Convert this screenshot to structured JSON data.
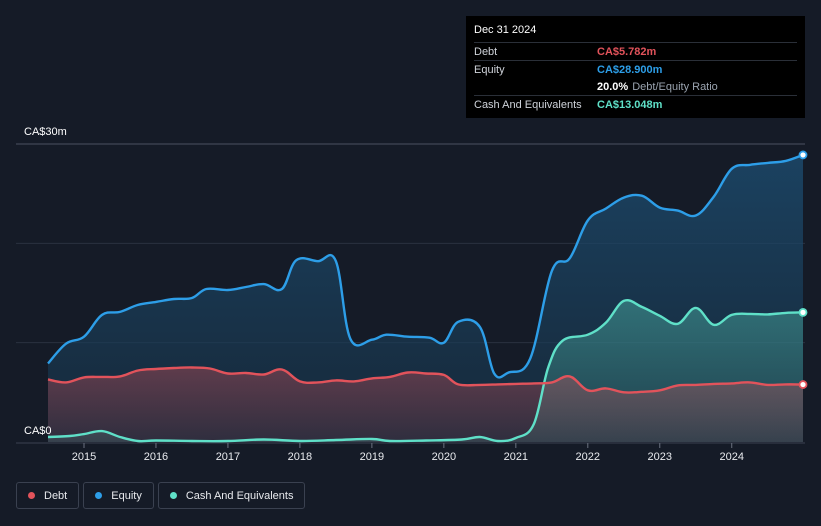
{
  "tooltip": {
    "date": "Dec 31 2024",
    "debt_label": "Debt",
    "debt_value": "CA$5.782m",
    "equity_label": "Equity",
    "equity_value": "CA$28.900m",
    "ratio_value": "20.0%",
    "ratio_label": "Debt/Equity Ratio",
    "cash_label": "Cash And Equivalents",
    "cash_value": "CA$13.048m"
  },
  "y_axis": {
    "top_label": "CA$30m",
    "bottom_label": "CA$0"
  },
  "legend": [
    {
      "label": "Debt",
      "color": "#e2535b"
    },
    {
      "label": "Equity",
      "color": "#2d9ee8"
    },
    {
      "label": "Cash And Equivalents",
      "color": "#5fe0c8"
    }
  ],
  "chart_data": {
    "type": "area",
    "title": "",
    "xlabel": "",
    "ylabel": "",
    "ylim": [
      0,
      30
    ],
    "x_ticks": [
      "2015",
      "2016",
      "2017",
      "2018",
      "2019",
      "2020",
      "2021",
      "2022",
      "2023",
      "2024"
    ],
    "series": [
      {
        "name": "Equity",
        "color": "#2d9ee8",
        "points": [
          [
            2014.5,
            7.9
          ],
          [
            2014.75,
            9.9
          ],
          [
            2015.0,
            10.6
          ],
          [
            2015.25,
            12.8
          ],
          [
            2015.5,
            13.1
          ],
          [
            2015.75,
            13.8
          ],
          [
            2016.0,
            14.1
          ],
          [
            2016.25,
            14.4
          ],
          [
            2016.5,
            14.5
          ],
          [
            2016.7,
            15.4
          ],
          [
            2017.0,
            15.3
          ],
          [
            2017.25,
            15.6
          ],
          [
            2017.5,
            15.9
          ],
          [
            2017.75,
            15.4
          ],
          [
            2017.95,
            18.3
          ],
          [
            2018.25,
            18.2
          ],
          [
            2018.5,
            18.2
          ],
          [
            2018.7,
            10.4
          ],
          [
            2019.0,
            10.3
          ],
          [
            2019.2,
            10.8
          ],
          [
            2019.5,
            10.6
          ],
          [
            2019.8,
            10.5
          ],
          [
            2020.0,
            10.0
          ],
          [
            2020.2,
            12.1
          ],
          [
            2020.5,
            11.6
          ],
          [
            2020.7,
            6.9
          ],
          [
            2020.9,
            7.0
          ],
          [
            2021.2,
            8.4
          ],
          [
            2021.5,
            17.2
          ],
          [
            2021.75,
            18.5
          ],
          [
            2022.0,
            22.3
          ],
          [
            2022.25,
            23.5
          ],
          [
            2022.5,
            24.6
          ],
          [
            2022.75,
            24.8
          ],
          [
            2023.0,
            23.6
          ],
          [
            2023.25,
            23.3
          ],
          [
            2023.5,
            22.8
          ],
          [
            2023.75,
            24.7
          ],
          [
            2024.0,
            27.5
          ],
          [
            2024.25,
            27.9
          ],
          [
            2024.5,
            28.1
          ],
          [
            2024.75,
            28.3
          ],
          [
            2024.99,
            28.9
          ]
        ]
      },
      {
        "name": "Cash And Equivalents",
        "color": "#5fe0c8",
        "points": [
          [
            2014.5,
            0.5
          ],
          [
            2014.8,
            0.6
          ],
          [
            2015.0,
            0.8
          ],
          [
            2015.25,
            1.1
          ],
          [
            2015.5,
            0.5
          ],
          [
            2015.75,
            0.1
          ],
          [
            2016.0,
            0.15
          ],
          [
            2016.5,
            0.1
          ],
          [
            2017.0,
            0.1
          ],
          [
            2017.5,
            0.25
          ],
          [
            2018.0,
            0.1
          ],
          [
            2018.5,
            0.2
          ],
          [
            2019.0,
            0.3
          ],
          [
            2019.25,
            0.1
          ],
          [
            2019.75,
            0.15
          ],
          [
            2020.25,
            0.25
          ],
          [
            2020.5,
            0.5
          ],
          [
            2020.75,
            0.1
          ],
          [
            2021.0,
            0.4
          ],
          [
            2021.25,
            1.8
          ],
          [
            2021.45,
            7.5
          ],
          [
            2021.65,
            10.2
          ],
          [
            2022.0,
            10.8
          ],
          [
            2022.25,
            12.0
          ],
          [
            2022.5,
            14.2
          ],
          [
            2022.75,
            13.6
          ],
          [
            2023.0,
            12.7
          ],
          [
            2023.25,
            11.9
          ],
          [
            2023.5,
            13.5
          ],
          [
            2023.75,
            11.8
          ],
          [
            2024.0,
            12.8
          ],
          [
            2024.25,
            12.9
          ],
          [
            2024.5,
            12.85
          ],
          [
            2024.75,
            13.0
          ],
          [
            2024.99,
            13.048
          ]
        ]
      },
      {
        "name": "Debt",
        "color": "#e2535b",
        "points": [
          [
            2014.5,
            6.3
          ],
          [
            2014.75,
            6.0
          ],
          [
            2015.0,
            6.5
          ],
          [
            2015.25,
            6.55
          ],
          [
            2015.5,
            6.6
          ],
          [
            2015.75,
            7.2
          ],
          [
            2016.0,
            7.35
          ],
          [
            2016.25,
            7.45
          ],
          [
            2016.5,
            7.5
          ],
          [
            2016.75,
            7.4
          ],
          [
            2017.0,
            6.9
          ],
          [
            2017.25,
            6.95
          ],
          [
            2017.5,
            6.8
          ],
          [
            2017.75,
            7.3
          ],
          [
            2018.0,
            6.1
          ],
          [
            2018.25,
            6.0
          ],
          [
            2018.5,
            6.2
          ],
          [
            2018.75,
            6.1
          ],
          [
            2019.0,
            6.4
          ],
          [
            2019.25,
            6.55
          ],
          [
            2019.5,
            7.0
          ],
          [
            2019.75,
            6.9
          ],
          [
            2020.0,
            6.75
          ],
          [
            2020.2,
            5.8
          ],
          [
            2020.5,
            5.75
          ],
          [
            2020.75,
            5.8
          ],
          [
            2021.0,
            5.85
          ],
          [
            2021.25,
            5.9
          ],
          [
            2021.5,
            6.0
          ],
          [
            2021.75,
            6.6
          ],
          [
            2022.0,
            5.2
          ],
          [
            2022.25,
            5.4
          ],
          [
            2022.5,
            5.0
          ],
          [
            2022.75,
            5.05
          ],
          [
            2023.0,
            5.2
          ],
          [
            2023.25,
            5.7
          ],
          [
            2023.5,
            5.75
          ],
          [
            2023.75,
            5.85
          ],
          [
            2024.0,
            5.9
          ],
          [
            2024.25,
            6.0
          ],
          [
            2024.5,
            5.75
          ],
          [
            2024.75,
            5.8
          ],
          [
            2024.99,
            5.782
          ]
        ]
      }
    ]
  }
}
